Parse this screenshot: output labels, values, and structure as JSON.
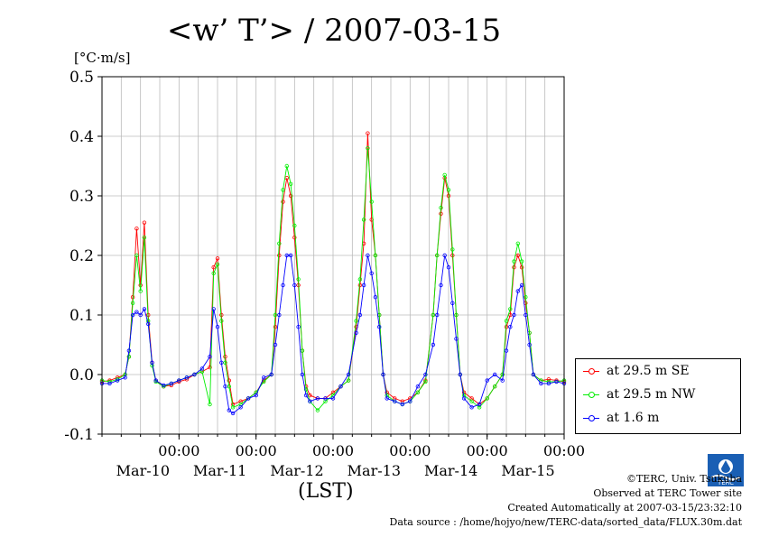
{
  "title": "<w’ T’> / 2007-03-15",
  "unit": "[°C·m/s]",
  "xlabel": "(LST)",
  "legend": [
    {
      "label": "at 29.5 m SE",
      "color": "#ff0000"
    },
    {
      "label": "at 29.5 m NW",
      "color": "#00ee00"
    },
    {
      "label": "at 1.6 m",
      "color": "#0000ff"
    }
  ],
  "footer": {
    "credit": "©TERC, Univ. Tsukuba",
    "observed": "Observed at TERC Tower site",
    "created": "Created Automatically at 2007-03-15/23:32:10",
    "source": "Data source : /home/hojyo/new/TERC-data/sorted_data/FLUX.30m.dat"
  },
  "logo_text": "TERC",
  "chart_data": {
    "type": "line",
    "title": "<w’ T’> / 2007-03-15",
    "ylabel": "[°C·m/s]",
    "xlabel": "(LST)",
    "ylim": [
      -0.1,
      0.5
    ],
    "yticks": [
      "-0.1",
      "0.0",
      "0.1",
      "0.2",
      "0.3",
      "0.4",
      "0.5"
    ],
    "xlim_days": [
      9,
      15
    ],
    "xtick_time_label": "00:00",
    "xtick_days": [
      "Mar-10",
      "Mar-11",
      "Mar-12",
      "Mar-13",
      "Mar-14",
      "Mar-15"
    ],
    "grid": true,
    "legend_position": "bottom-right outside",
    "series": [
      {
        "name": "at 29.5 m SE",
        "color": "#ff0000",
        "points": [
          [
            9.0,
            -0.012
          ],
          [
            9.1,
            -0.01
          ],
          [
            9.2,
            -0.005
          ],
          [
            9.3,
            0.0
          ],
          [
            9.35,
            0.03
          ],
          [
            9.4,
            0.13
          ],
          [
            9.45,
            0.245
          ],
          [
            9.5,
            0.15
          ],
          [
            9.55,
            0.255
          ],
          [
            9.6,
            0.1
          ],
          [
            9.65,
            0.02
          ],
          [
            9.7,
            -0.01
          ],
          [
            9.8,
            -0.02
          ],
          [
            9.9,
            -0.018
          ],
          [
            10.0,
            -0.012
          ],
          [
            10.1,
            -0.008
          ],
          [
            10.2,
            0.0
          ],
          [
            10.3,
            0.005
          ],
          [
            10.4,
            0.012
          ],
          [
            10.45,
            0.18
          ],
          [
            10.5,
            0.195
          ],
          [
            10.55,
            0.1
          ],
          [
            10.6,
            0.03
          ],
          [
            10.65,
            -0.01
          ],
          [
            10.7,
            -0.05
          ],
          [
            10.8,
            -0.045
          ],
          [
            10.9,
            -0.04
          ],
          [
            11.0,
            -0.03
          ],
          [
            11.1,
            -0.01
          ],
          [
            11.2,
            0.0
          ],
          [
            11.25,
            0.08
          ],
          [
            11.3,
            0.2
          ],
          [
            11.35,
            0.29
          ],
          [
            11.4,
            0.33
          ],
          [
            11.45,
            0.3
          ],
          [
            11.5,
            0.23
          ],
          [
            11.55,
            0.15
          ],
          [
            11.6,
            0.04
          ],
          [
            11.65,
            -0.02
          ],
          [
            11.7,
            -0.035
          ],
          [
            11.8,
            -0.04
          ],
          [
            11.9,
            -0.04
          ],
          [
            12.0,
            -0.03
          ],
          [
            12.1,
            -0.02
          ],
          [
            12.2,
            -0.01
          ],
          [
            12.3,
            0.08
          ],
          [
            12.35,
            0.15
          ],
          [
            12.4,
            0.22
          ],
          [
            12.45,
            0.405
          ],
          [
            12.5,
            0.26
          ],
          [
            12.55,
            0.2
          ],
          [
            12.6,
            0.1
          ],
          [
            12.65,
            0.0
          ],
          [
            12.7,
            -0.03
          ],
          [
            12.8,
            -0.04
          ],
          [
            12.9,
            -0.045
          ],
          [
            13.0,
            -0.04
          ],
          [
            13.1,
            -0.03
          ],
          [
            13.2,
            -0.01
          ],
          [
            13.3,
            0.1
          ],
          [
            13.35,
            0.2
          ],
          [
            13.4,
            0.27
          ],
          [
            13.45,
            0.33
          ],
          [
            13.5,
            0.3
          ],
          [
            13.55,
            0.2
          ],
          [
            13.6,
            0.1
          ],
          [
            13.65,
            0.0
          ],
          [
            13.7,
            -0.03
          ],
          [
            13.8,
            -0.04
          ],
          [
            13.9,
            -0.05
          ],
          [
            14.0,
            -0.04
          ],
          [
            14.1,
            -0.02
          ],
          [
            14.2,
            0.0
          ],
          [
            14.25,
            0.08
          ],
          [
            14.3,
            0.1
          ],
          [
            14.35,
            0.18
          ],
          [
            14.4,
            0.2
          ],
          [
            14.45,
            0.18
          ],
          [
            14.5,
            0.12
          ],
          [
            14.55,
            0.07
          ],
          [
            14.6,
            0.0
          ],
          [
            14.7,
            -0.01
          ],
          [
            14.8,
            -0.008
          ],
          [
            14.9,
            -0.01
          ],
          [
            15.0,
            -0.012
          ]
        ]
      },
      {
        "name": "at 29.5 m NW",
        "color": "#00ee00",
        "points": [
          [
            9.0,
            -0.01
          ],
          [
            9.1,
            -0.012
          ],
          [
            9.2,
            -0.008
          ],
          [
            9.3,
            0.0
          ],
          [
            9.35,
            0.03
          ],
          [
            9.4,
            0.12
          ],
          [
            9.45,
            0.2
          ],
          [
            9.5,
            0.14
          ],
          [
            9.55,
            0.23
          ],
          [
            9.6,
            0.09
          ],
          [
            9.65,
            0.015
          ],
          [
            9.7,
            -0.012
          ],
          [
            9.8,
            -0.02
          ],
          [
            9.9,
            -0.015
          ],
          [
            10.0,
            -0.01
          ],
          [
            10.1,
            -0.005
          ],
          [
            10.2,
            0.0
          ],
          [
            10.3,
            0.005
          ],
          [
            10.4,
            -0.05
          ],
          [
            10.45,
            0.17
          ],
          [
            10.5,
            0.185
          ],
          [
            10.55,
            0.09
          ],
          [
            10.6,
            0.02
          ],
          [
            10.65,
            -0.02
          ],
          [
            10.7,
            -0.055
          ],
          [
            10.8,
            -0.05
          ],
          [
            10.9,
            -0.04
          ],
          [
            11.0,
            -0.03
          ],
          [
            11.1,
            -0.012
          ],
          [
            11.2,
            0.0
          ],
          [
            11.25,
            0.1
          ],
          [
            11.3,
            0.22
          ],
          [
            11.35,
            0.31
          ],
          [
            11.4,
            0.35
          ],
          [
            11.45,
            0.32
          ],
          [
            11.5,
            0.25
          ],
          [
            11.55,
            0.16
          ],
          [
            11.6,
            0.04
          ],
          [
            11.65,
            -0.025
          ],
          [
            11.7,
            -0.045
          ],
          [
            11.8,
            -0.06
          ],
          [
            11.9,
            -0.045
          ],
          [
            12.0,
            -0.035
          ],
          [
            12.1,
            -0.02
          ],
          [
            12.2,
            -0.01
          ],
          [
            12.3,
            0.09
          ],
          [
            12.35,
            0.16
          ],
          [
            12.4,
            0.26
          ],
          [
            12.45,
            0.38
          ],
          [
            12.5,
            0.29
          ],
          [
            12.55,
            0.2
          ],
          [
            12.6,
            0.1
          ],
          [
            12.65,
            0.0
          ],
          [
            12.7,
            -0.035
          ],
          [
            12.8,
            -0.045
          ],
          [
            12.9,
            -0.05
          ],
          [
            13.0,
            -0.045
          ],
          [
            13.1,
            -0.03
          ],
          [
            13.2,
            -0.012
          ],
          [
            13.3,
            0.1
          ],
          [
            13.35,
            0.2
          ],
          [
            13.4,
            0.28
          ],
          [
            13.45,
            0.335
          ],
          [
            13.5,
            0.31
          ],
          [
            13.55,
            0.21
          ],
          [
            13.6,
            0.1
          ],
          [
            13.65,
            0.0
          ],
          [
            13.7,
            -0.035
          ],
          [
            13.8,
            -0.045
          ],
          [
            13.9,
            -0.055
          ],
          [
            14.0,
            -0.04
          ],
          [
            14.1,
            -0.02
          ],
          [
            14.2,
            0.0
          ],
          [
            14.25,
            0.09
          ],
          [
            14.3,
            0.11
          ],
          [
            14.35,
            0.19
          ],
          [
            14.4,
            0.22
          ],
          [
            14.45,
            0.19
          ],
          [
            14.5,
            0.13
          ],
          [
            14.55,
            0.07
          ],
          [
            14.6,
            0.0
          ],
          [
            14.7,
            -0.01
          ],
          [
            14.8,
            -0.012
          ],
          [
            14.9,
            -0.012
          ],
          [
            15.0,
            -0.01
          ]
        ]
      },
      {
        "name": "at 1.6 m",
        "color": "#0000ff",
        "points": [
          [
            9.0,
            -0.015
          ],
          [
            9.1,
            -0.015
          ],
          [
            9.2,
            -0.01
          ],
          [
            9.3,
            -0.005
          ],
          [
            9.35,
            0.04
          ],
          [
            9.4,
            0.1
          ],
          [
            9.45,
            0.105
          ],
          [
            9.5,
            0.1
          ],
          [
            9.55,
            0.11
          ],
          [
            9.6,
            0.085
          ],
          [
            9.65,
            0.02
          ],
          [
            9.7,
            -0.01
          ],
          [
            9.8,
            -0.018
          ],
          [
            9.9,
            -0.015
          ],
          [
            10.0,
            -0.01
          ],
          [
            10.1,
            -0.005
          ],
          [
            10.2,
            0.0
          ],
          [
            10.3,
            0.01
          ],
          [
            10.4,
            0.03
          ],
          [
            10.45,
            0.11
          ],
          [
            10.5,
            0.08
          ],
          [
            10.55,
            0.02
          ],
          [
            10.6,
            -0.02
          ],
          [
            10.65,
            -0.06
          ],
          [
            10.7,
            -0.065
          ],
          [
            10.8,
            -0.055
          ],
          [
            10.9,
            -0.04
          ],
          [
            11.0,
            -0.035
          ],
          [
            11.1,
            -0.005
          ],
          [
            11.2,
            0.0
          ],
          [
            11.25,
            0.05
          ],
          [
            11.3,
            0.1
          ],
          [
            11.35,
            0.15
          ],
          [
            11.4,
            0.2
          ],
          [
            11.45,
            0.2
          ],
          [
            11.5,
            0.15
          ],
          [
            11.55,
            0.08
          ],
          [
            11.6,
            0.0
          ],
          [
            11.65,
            -0.035
          ],
          [
            11.7,
            -0.045
          ],
          [
            11.8,
            -0.04
          ],
          [
            11.9,
            -0.04
          ],
          [
            12.0,
            -0.04
          ],
          [
            12.1,
            -0.02
          ],
          [
            12.2,
            0.0
          ],
          [
            12.3,
            0.07
          ],
          [
            12.35,
            0.1
          ],
          [
            12.4,
            0.15
          ],
          [
            12.45,
            0.2
          ],
          [
            12.5,
            0.17
          ],
          [
            12.55,
            0.13
          ],
          [
            12.6,
            0.08
          ],
          [
            12.65,
            0.0
          ],
          [
            12.7,
            -0.04
          ],
          [
            12.8,
            -0.045
          ],
          [
            12.9,
            -0.05
          ],
          [
            13.0,
            -0.045
          ],
          [
            13.1,
            -0.02
          ],
          [
            13.2,
            0.0
          ],
          [
            13.3,
            0.05
          ],
          [
            13.35,
            0.1
          ],
          [
            13.4,
            0.15
          ],
          [
            13.45,
            0.2
          ],
          [
            13.5,
            0.18
          ],
          [
            13.55,
            0.12
          ],
          [
            13.6,
            0.06
          ],
          [
            13.65,
            0.0
          ],
          [
            13.7,
            -0.04
          ],
          [
            13.8,
            -0.055
          ],
          [
            13.9,
            -0.05
          ],
          [
            14.0,
            -0.01
          ],
          [
            14.1,
            0.0
          ],
          [
            14.2,
            -0.01
          ],
          [
            14.25,
            0.04
          ],
          [
            14.3,
            0.08
          ],
          [
            14.35,
            0.1
          ],
          [
            14.4,
            0.14
          ],
          [
            14.45,
            0.15
          ],
          [
            14.5,
            0.1
          ],
          [
            14.55,
            0.05
          ],
          [
            14.6,
            0.0
          ],
          [
            14.7,
            -0.015
          ],
          [
            14.8,
            -0.015
          ],
          [
            14.9,
            -0.012
          ],
          [
            15.0,
            -0.015
          ]
        ]
      }
    ]
  }
}
